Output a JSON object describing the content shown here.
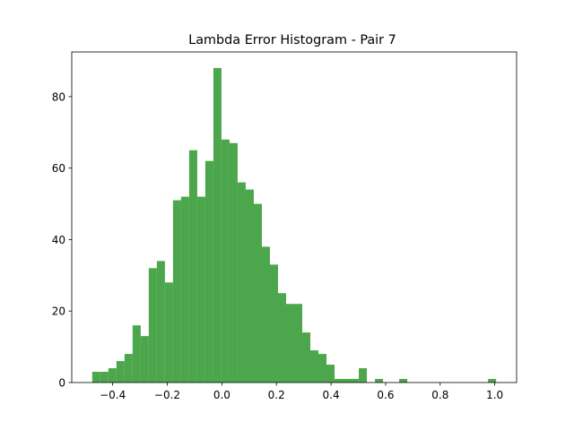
{
  "chart_data": {
    "type": "bar",
    "title": "Lambda Error Histogram - Pair 7",
    "xlabel": "",
    "ylabel": "",
    "xlim": [
      -0.55,
      1.08
    ],
    "ylim": [
      0,
      92.5
    ],
    "bar_color": "#4ca64c",
    "grid": false,
    "bin_start": -0.475,
    "bin_width": 0.0296,
    "x_ticks": [
      -0.4,
      -0.2,
      0.0,
      0.2,
      0.4,
      0.6,
      0.8,
      1.0
    ],
    "x_tick_labels": [
      "−0.4",
      "−0.2",
      "0.0",
      "0.2",
      "0.4",
      "0.6",
      "0.8",
      "1.0"
    ],
    "y_ticks": [
      0,
      20,
      40,
      60,
      80
    ],
    "y_tick_labels": [
      "0",
      "20",
      "40",
      "60",
      "80"
    ],
    "counts": [
      3,
      3,
      4,
      6,
      8,
      16,
      13,
      32,
      34,
      28,
      51,
      52,
      65,
      52,
      62,
      88,
      68,
      67,
      56,
      54,
      50,
      38,
      33,
      25,
      22,
      22,
      14,
      9,
      8,
      5,
      1,
      1,
      1,
      4,
      0,
      1,
      0,
      0,
      1,
      0,
      0,
      0,
      0,
      0,
      0,
      0,
      0,
      0,
      0,
      1
    ]
  }
}
